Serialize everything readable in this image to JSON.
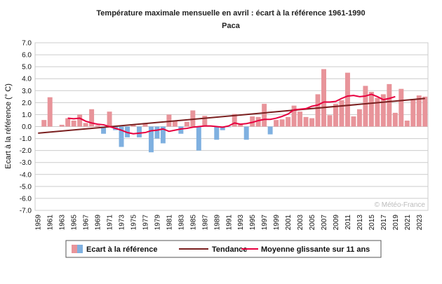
{
  "chart_data": {
    "type": "bar",
    "title": "Température maximale mensuelle en avril : écart à la référence 1961-1990",
    "subtitle": "Paca",
    "ylabel": "Ecart à la référence (° C)",
    "xlabel": "",
    "ylim": [
      -7.0,
      7.0
    ],
    "yticks": [
      "7.0",
      "6.0",
      "5.0",
      "4.0",
      "3.0",
      "2.0",
      "1.0",
      "0.0",
      "-1.0",
      "-2.0",
      "-3.0",
      "-4.0",
      "-5.0",
      "-6.0",
      "-7.0"
    ],
    "grid": true,
    "legend_position": "bottom",
    "credit": "© Météo-France",
    "positive_color": "#e8949a",
    "negative_color": "#7fb0e0",
    "x": [
      1959,
      1960,
      1961,
      1962,
      1963,
      1964,
      1965,
      1966,
      1967,
      1968,
      1969,
      1970,
      1971,
      1972,
      1973,
      1974,
      1975,
      1976,
      1977,
      1978,
      1979,
      1980,
      1981,
      1982,
      1983,
      1984,
      1985,
      1986,
      1987,
      1988,
      1989,
      1990,
      1991,
      1992,
      1993,
      1994,
      1995,
      1996,
      1997,
      1998,
      1999,
      2000,
      2001,
      2002,
      2003,
      2004,
      2005,
      2006,
      2007,
      2008,
      2009,
      2010,
      2011,
      2012,
      2013,
      2014,
      2015,
      2016,
      2017,
      2018,
      2019,
      2020,
      2021,
      2022,
      2023,
      2024
    ],
    "xtick_labels": [
      "1959",
      "1961",
      "1963",
      "1965",
      "1967",
      "1969",
      "1971",
      "1973",
      "1975",
      "1977",
      "1979",
      "1981",
      "1983",
      "1985",
      "1987",
      "1989",
      "1991",
      "1993",
      "1995",
      "1997",
      "1999",
      "2001",
      "2003",
      "2005",
      "2007",
      "2009",
      "2011",
      "2013",
      "2015",
      "2017",
      "2019",
      "2021",
      "2023"
    ],
    "series": [
      {
        "name": "Ecart à la référence",
        "type": "bar",
        "values": [
          0.0,
          0.55,
          2.45,
          0.0,
          0.15,
          0.7,
          0.5,
          1.0,
          0.3,
          1.45,
          0.1,
          -0.6,
          1.25,
          -0.3,
          -1.7,
          -0.9,
          0.2,
          -0.9,
          0.3,
          -2.15,
          -1.0,
          -1.4,
          1.0,
          0.5,
          -0.6,
          0.4,
          1.35,
          -2.0,
          0.9,
          0.05,
          -1.1,
          -0.3,
          -0.05,
          1.05,
          0.2,
          -1.1,
          0.85,
          0.8,
          1.9,
          -0.65,
          0.55,
          0.6,
          0.8,
          1.75,
          1.25,
          0.8,
          0.7,
          2.7,
          4.8,
          0.95,
          1.9,
          2.2,
          4.5,
          0.85,
          1.45,
          3.4,
          2.9,
          2.4,
          2.7,
          3.55,
          1.15,
          3.15,
          0.5,
          2.3,
          2.6,
          2.5
        ]
      },
      {
        "name": "Tendance",
        "type": "line",
        "color": "#7a1f1f",
        "x": [
          1959,
          2024
        ],
        "values": [
          -0.55,
          2.35
        ]
      },
      {
        "name": "Moyenne glissante sur 11 ans",
        "type": "line",
        "color": "#e8003f",
        "x": [
          1964,
          1965,
          1966,
          1967,
          1968,
          1969,
          1970,
          1971,
          1972,
          1973,
          1974,
          1975,
          1976,
          1977,
          1978,
          1979,
          1980,
          1981,
          1982,
          1983,
          1984,
          1985,
          1986,
          1987,
          1988,
          1989,
          1990,
          1991,
          1992,
          1993,
          1994,
          1995,
          1996,
          1997,
          1998,
          1999,
          2000,
          2001,
          2002,
          2003,
          2004,
          2005,
          2006,
          2007,
          2008,
          2009,
          2010,
          2011,
          2012,
          2013,
          2014,
          2015,
          2016,
          2017,
          2018,
          2019
        ],
        "values": [
          0.7,
          0.65,
          0.7,
          0.45,
          0.3,
          0.2,
          0.15,
          0.0,
          -0.15,
          -0.3,
          -0.5,
          -0.6,
          -0.55,
          -0.5,
          -0.35,
          -0.3,
          -0.2,
          -0.4,
          -0.3,
          -0.2,
          -0.15,
          -0.05,
          0.0,
          0.05,
          0.05,
          0.0,
          -0.05,
          0.05,
          0.3,
          0.2,
          0.25,
          0.35,
          0.5,
          0.6,
          0.6,
          0.7,
          0.85,
          1.05,
          1.4,
          1.45,
          1.5,
          1.7,
          1.8,
          2.05,
          2.05,
          2.1,
          2.35,
          2.55,
          2.6,
          2.5,
          2.55,
          2.7,
          2.5,
          2.25,
          2.35,
          2.5
        ]
      }
    ]
  }
}
